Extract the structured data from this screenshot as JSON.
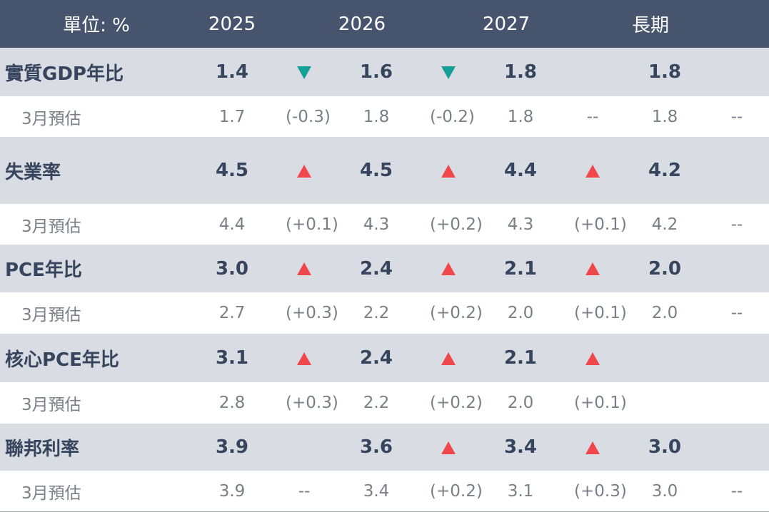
{
  "header": {
    "label": "單位: %",
    "cols": [
      "2025",
      "2026",
      "2027",
      "長期"
    ]
  },
  "colors": {
    "header_bg": "#46546d",
    "main_row_bg": "#d9dde3",
    "up_arrow": "#f0474c",
    "down_arrow": "#14a097"
  },
  "rows": [
    {
      "label": "實質GDP年比",
      "v": [
        "1.4",
        "1.6",
        "1.8",
        "1.8"
      ],
      "arrows": [
        "down-arrow",
        "down-arrow",
        "",
        ""
      ]
    },
    {
      "label": "3月預估",
      "v": [
        "1.7",
        "1.8",
        "1.8",
        "1.8"
      ],
      "d": [
        "(-0.3)",
        "(-0.2)",
        "--",
        "--"
      ]
    },
    {
      "label": "失業率",
      "v": [
        "4.5",
        "4.5",
        "4.4",
        "4.2"
      ],
      "arrows": [
        "up-arrow",
        "up-arrow",
        "up-arrow",
        ""
      ]
    },
    {
      "label": "3月預估",
      "v": [
        "4.4",
        "4.3",
        "4.3",
        "4.2"
      ],
      "d": [
        "(+0.1)",
        "(+0.2)",
        "(+0.1)",
        "--"
      ]
    },
    {
      "label": "PCE年比",
      "v": [
        "3.0",
        "2.4",
        "2.1",
        "2.0"
      ],
      "arrows": [
        "up-arrow",
        "up-arrow",
        "up-arrow",
        ""
      ]
    },
    {
      "label": "3月預估",
      "v": [
        "2.7",
        "2.2",
        "2.0",
        "2.0"
      ],
      "d": [
        "(+0.3)",
        "(+0.2)",
        "(+0.1)",
        "--"
      ]
    },
    {
      "label": "核心PCE年比",
      "v": [
        "3.1",
        "2.4",
        "2.1",
        ""
      ],
      "arrows": [
        "up-arrow",
        "up-arrow",
        "up-arrow",
        ""
      ]
    },
    {
      "label": "3月預估",
      "v": [
        "2.8",
        "2.2",
        "2.0",
        ""
      ],
      "d": [
        "(+0.3)",
        "(+0.2)",
        "(+0.1)",
        ""
      ]
    },
    {
      "label": "聯邦利率",
      "v": [
        "3.9",
        "3.6",
        "3.4",
        "3.0"
      ],
      "arrows": [
        "",
        "up-arrow",
        "up-arrow",
        ""
      ]
    },
    {
      "label": "3月預估",
      "v": [
        "3.9",
        "3.4",
        "3.1",
        "3.0"
      ],
      "d": [
        "--",
        "(+0.2)",
        "(+0.3)",
        "--"
      ]
    }
  ]
}
